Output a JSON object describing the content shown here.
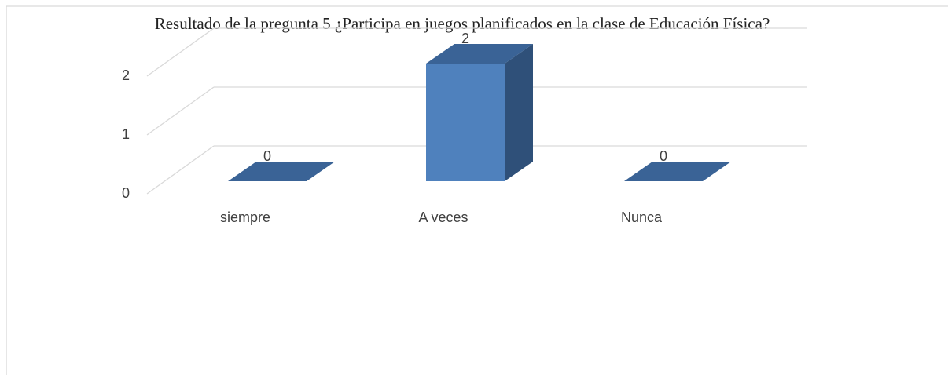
{
  "chart_data": {
    "type": "bar3d",
    "title": "Resultado de la pregunta 5 ¿Participa en juegos planificados en la clase de Educación Física?",
    "categories": [
      "siempre",
      "A veces",
      "Nunca"
    ],
    "values": [
      0,
      2,
      0
    ],
    "color": "#4f81bd",
    "ylim": [
      0,
      2
    ],
    "yticks": [
      0,
      1,
      2
    ],
    "grid": true
  }
}
